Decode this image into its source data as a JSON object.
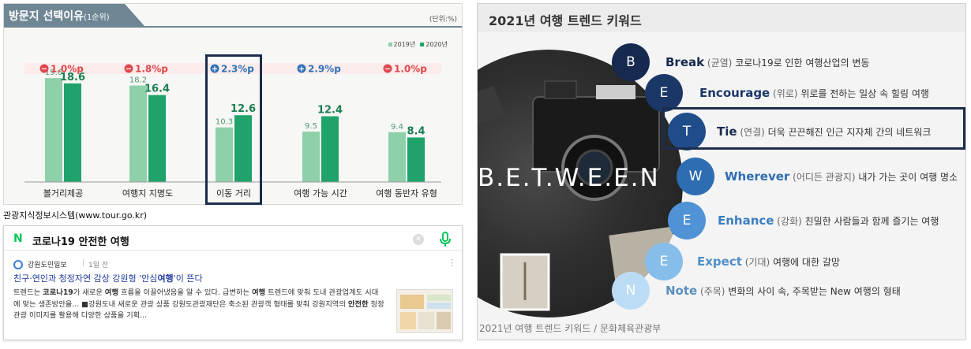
{
  "chart_panel": {
    "title": "방문지 선택이유",
    "title_suffix": "(1순위)",
    "unit": "(단위:%)",
    "legend": [
      {
        "label": "2019년",
        "color": "#8ed0a9"
      },
      {
        "label": "2020년",
        "color": "#1fa36a"
      }
    ],
    "source_caption": "관광지식정보시스템(www.tour.go.kr)"
  },
  "chart_data": {
    "type": "bar",
    "title": "방문지 선택이유(1순위)",
    "unit": "(단위:%)",
    "categories": [
      "볼거리제공",
      "여행지 지명도",
      "이동 거리",
      "여행 가능 시간",
      "여행 동반자 유형"
    ],
    "series": [
      {
        "name": "2019년",
        "values": [
          19.6,
          18.2,
          10.3,
          9.5,
          9.4
        ],
        "color": "#8ed0a9"
      },
      {
        "name": "2020년",
        "values": [
          18.6,
          16.4,
          12.6,
          12.4,
          8.4
        ],
        "color": "#1fa36a"
      }
    ],
    "changes": [
      {
        "label": "1.0%p",
        "sign": "minus",
        "color": "#e0474c"
      },
      {
        "label": "1.8%p",
        "sign": "minus",
        "color": "#e0474c"
      },
      {
        "label": "2.3%p",
        "sign": "plus",
        "color": "#2f72b8"
      },
      {
        "label": "2.9%p",
        "sign": "plus",
        "color": "#2f72b8"
      },
      {
        "label": "1.0%p",
        "sign": "minus",
        "color": "#e0474c"
      }
    ],
    "highlighted_category": "이동 거리",
    "ylim": [
      0,
      22
    ],
    "grid": false,
    "legend_position": "top-right"
  },
  "news": {
    "query": "코로나19 안전한 여행",
    "press": "강원도민일보",
    "time": "1일 전",
    "headline_pre": "친구·연인과 청정자연 감상 강원형 '안심",
    "headline_bold": "여행",
    "headline_post": "'이 뜬다",
    "snippet": [
      {
        "t": "트렌드는 ",
        "b": false
      },
      {
        "t": "코로나19",
        "b": true
      },
      {
        "t": "가 새로운 ",
        "b": false
      },
      {
        "t": "여행",
        "b": true
      },
      {
        "t": " 흐름을 이끌어냈음을 알 수 있다. 급변하는 ",
        "b": false
      },
      {
        "t": "여행",
        "b": true
      },
      {
        "t": " 트렌드에 맞춰 도내 관광업계도 시대에 맞는 생존방안을... ■강원도내 새로운 관광 상품 강원도관광재단은 축소된 관광객 형태를 맞춰 강원지역의 ",
        "b": false
      },
      {
        "t": "안전한",
        "b": true
      },
      {
        "t": " 청정 관광 이미지를 활용해 다양한 상품을 기획...",
        "b": false
      }
    ]
  },
  "trend": {
    "title": "2021년 여행 트렌드 키워드",
    "banner": "B.E.T.W.E.E.N",
    "source": "2021년 여행 트렌드 키워드 / 문화체육관광부",
    "keywords": [
      {
        "letter": "B",
        "word": "Break",
        "ko": "(균열)",
        "desc": "코로나19로 인한 여행산업의 변동",
        "circle": "#16294f",
        "word_color": "#16294f"
      },
      {
        "letter": "E",
        "word": "Encourage",
        "ko": "(위로)",
        "desc": "위로를 전하는 일상 속 힐링 여행",
        "circle": "#1b3768",
        "word_color": "#1b3768"
      },
      {
        "letter": "T",
        "word": "Tie",
        "ko": "(연결)",
        "desc": "더욱 끈끈해진 인근 지자체 간의 네트워크",
        "circle": "#1f4d8a",
        "word_color": "#1b2b4f"
      },
      {
        "letter": "W",
        "word": "Wherever",
        "ko": "(어디든 관광지)",
        "desc": "내가 가는 곳이 여행 명소",
        "circle": "#2e6db2",
        "word_color": "#2e6db2"
      },
      {
        "letter": "E",
        "word": "Enhance",
        "ko": "(강화)",
        "desc": "친밀한 사람들과 함께 즐기는 여행",
        "circle": "#4f93d6",
        "word_color": "#3b7ec0"
      },
      {
        "letter": "E",
        "word": "Expect",
        "ko": "(기대)",
        "desc": "여행에 대한 갈망",
        "circle": "#86bde9",
        "word_color": "#4f8fc7"
      },
      {
        "letter": "N",
        "word": "Note",
        "ko": "(주목)",
        "desc": "변화의 사이 속, 주목받는 New 여행의 형태",
        "circle": "#bcdcf5",
        "word_color": "#5a8fbe"
      }
    ]
  }
}
